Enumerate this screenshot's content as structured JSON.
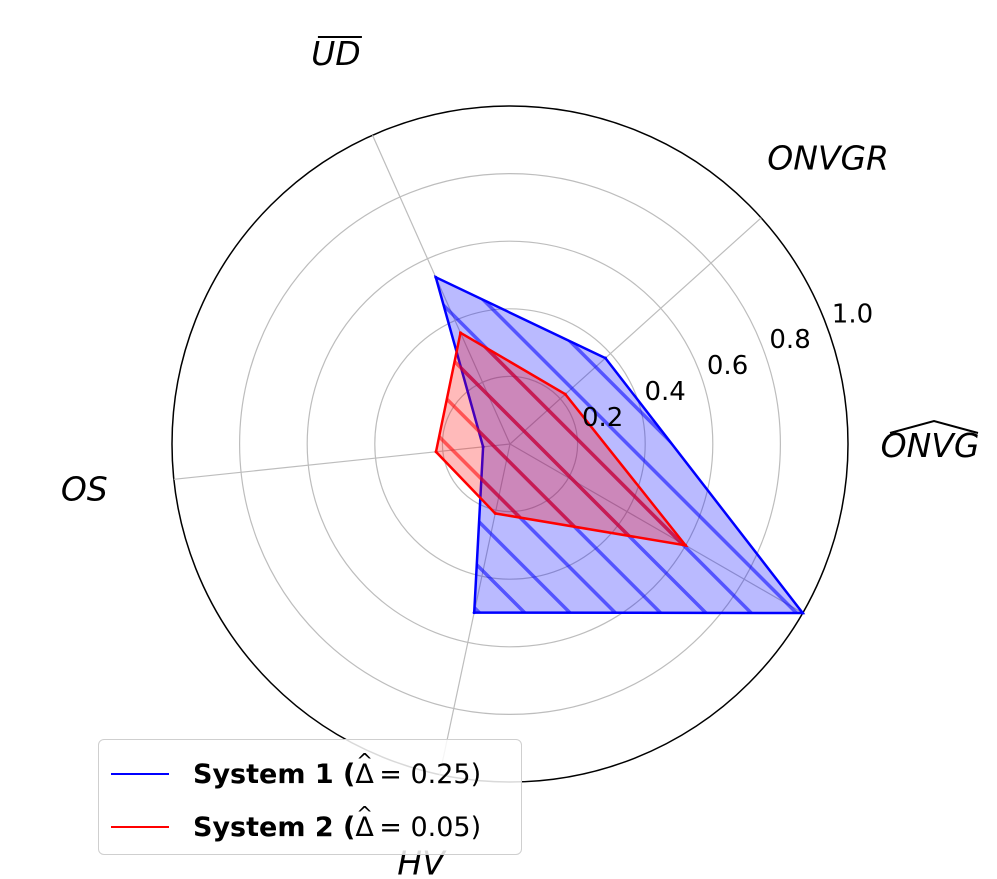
{
  "chart_data": {
    "type": "radar",
    "axes": [
      "ONVG",
      "ONVGR",
      "UD",
      "OS",
      "HV"
    ],
    "axis_decorations": [
      "wide-hat",
      "none",
      "overline",
      "none",
      "none"
    ],
    "rlim": [
      0,
      1.0
    ],
    "r_ticks": [
      0.2,
      0.4,
      0.6,
      0.8,
      1.0
    ],
    "r_tick_labels": [
      "0.2",
      "0.4",
      "0.6",
      "0.8",
      "1.0"
    ],
    "grid": true,
    "series": [
      {
        "name": "System 1 (Δ̂ = 0.25)",
        "label_prefix": "System 1 (",
        "label_symbol": "Δ",
        "label_value": "= 0.25)",
        "values": [
          1.0,
          0.38,
          0.54,
          0.08,
          0.51
        ],
        "color": "#0000ff",
        "fill": "#0000ff",
        "hatch": true
      },
      {
        "name": "System 2 (Δ̂ = 0.05)",
        "label_prefix": "System 2 (",
        "label_symbol": "Δ",
        "label_value": "= 0.05)",
        "values": [
          0.6,
          0.22,
          0.36,
          0.22,
          0.21
        ],
        "color": "#ff0000",
        "fill": "#ff0000",
        "hatch": true
      }
    ],
    "legend_position": "lower-left"
  }
}
